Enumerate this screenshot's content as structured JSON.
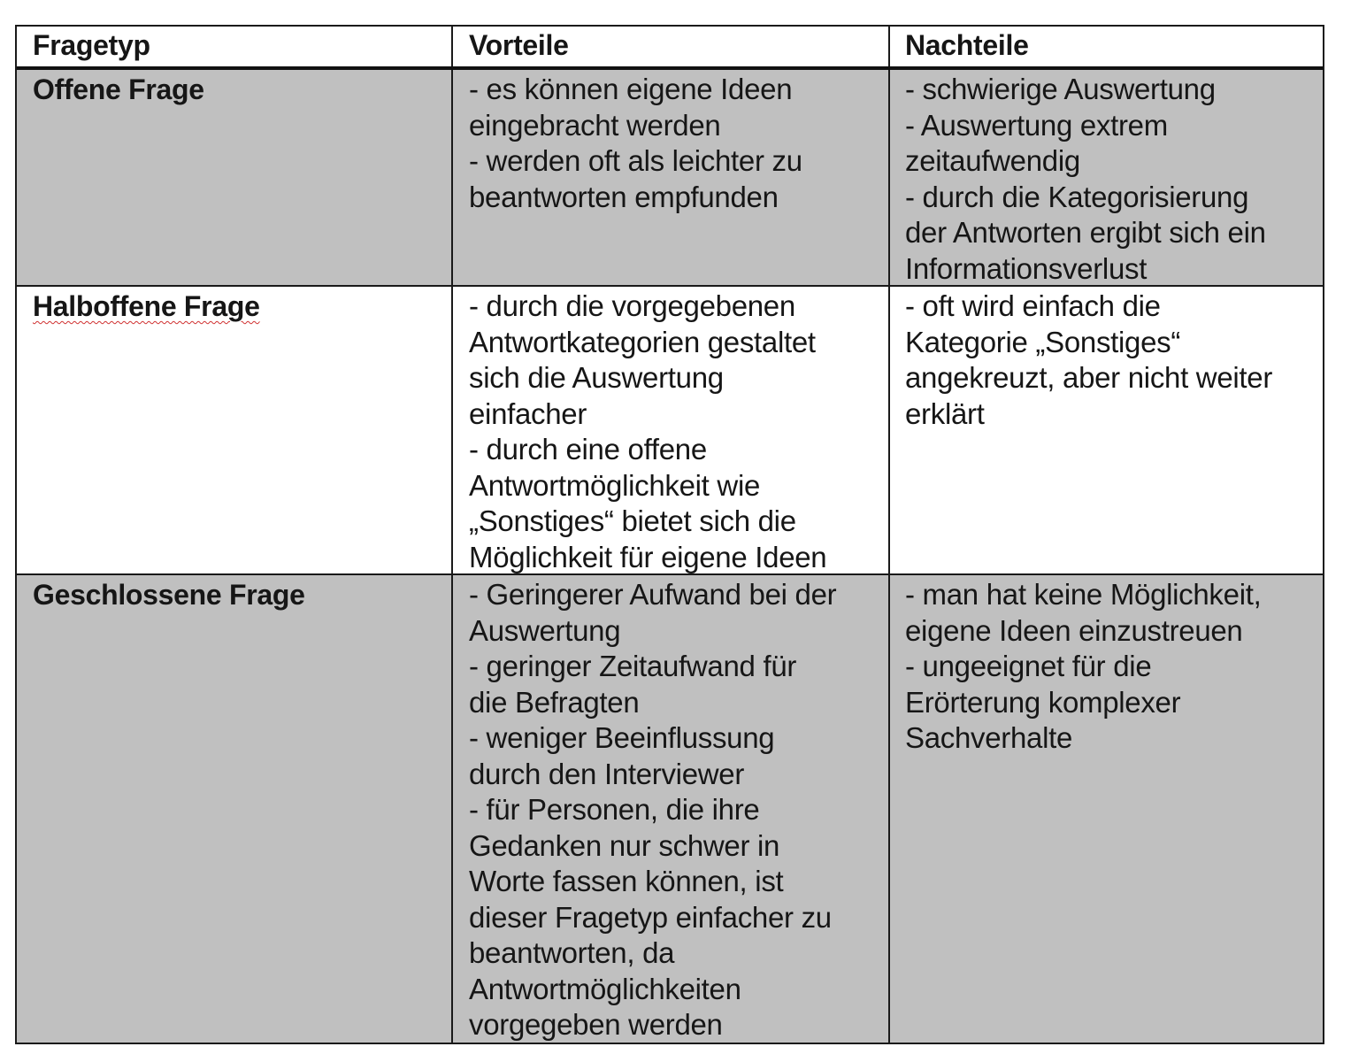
{
  "table": {
    "headers": [
      "Fragetyp",
      "Vorteile",
      "Nachteile"
    ],
    "rows": [
      {
        "type": "Offene Frage",
        "shade": "#c0c0c0",
        "pros": [
          "- es können eigene Ideen",
          "eingebracht werden",
          "- werden oft als leichter zu",
          "beantworten empfunden"
        ],
        "cons": [
          "- schwierige Auswertung",
          "- Auswertung extrem",
          "zeitaufwendig",
          "- durch die Kategorisierung",
          "der Antworten ergibt sich ein",
          "Informationsverlust"
        ]
      },
      {
        "type": "Halboffene Frage",
        "shade": "#ffffff",
        "pros": [
          "- durch die vorgegebenen",
          "Antwortkategorien gestaltet",
          "sich die Auswertung",
          "einfacher",
          "- durch eine offene",
          "Antwortmöglichkeit wie",
          "„Sonstiges“ bietet sich die",
          "Möglichkeit für eigene Ideen"
        ],
        "cons": [
          "- oft wird einfach die",
          "Kategorie „Sonstiges“",
          "angekreuzt, aber nicht weiter",
          "erklärt"
        ]
      },
      {
        "type": "Geschlossene Frage",
        "shade": "#c0c0c0",
        "pros": [
          "- Geringerer Aufwand bei der",
          "Auswertung",
          "- geringer Zeitaufwand für",
          "die Befragten",
          "- weniger Beeinflussung",
          "durch den Interviewer",
          "- für Personen, die ihre",
          "Gedanken nur schwer in",
          "Worte fassen können, ist",
          "dieser Fragetyp einfacher zu",
          "beantworten, da",
          "Antwortmöglichkeiten",
          "vorgegeben werden"
        ],
        "cons": [
          "- man hat keine Möglichkeit,",
          "eigene Ideen einzustreuen",
          "- ungeeignet  für die",
          "Erörterung komplexer",
          "Sachverhalte"
        ]
      }
    ]
  }
}
